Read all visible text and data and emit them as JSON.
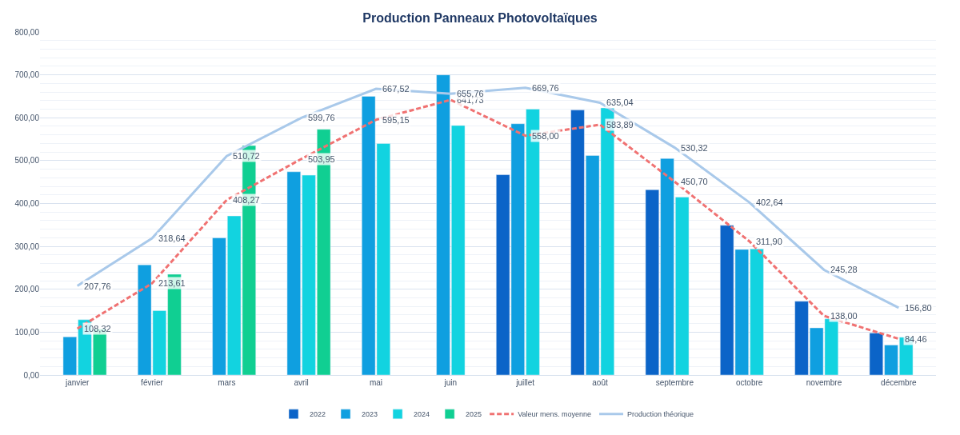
{
  "chart_data": {
    "type": "bar",
    "title": "Production Panneaux Photovoltaïques",
    "categories": [
      "janvier",
      "février",
      "mars",
      "avril",
      "mai",
      "juin",
      "juillet",
      "août",
      "septembre",
      "octobre",
      "novembre",
      "décembre"
    ],
    "series": [
      {
        "name": "2022",
        "color": "#0b64c8",
        "values": [
          null,
          null,
          null,
          null,
          null,
          null,
          467,
          618,
          432,
          349,
          172,
          98
        ]
      },
      {
        "name": "2023",
        "color": "#0f9fe0",
        "values": [
          89,
          257,
          320,
          474,
          650,
          700,
          586,
          512,
          505,
          293,
          110,
          70
        ]
      },
      {
        "name": "2024",
        "color": "#12d3e0",
        "values": [
          129,
          150,
          371,
          466,
          540,
          582,
          620,
          623,
          415,
          294,
          131,
          88
        ]
      },
      {
        "name": "2025",
        "color": "#10cf92",
        "values": [
          107,
          235,
          535,
          573,
          null,
          null,
          null,
          null,
          null,
          null,
          null,
          null
        ]
      },
      {
        "name": "Valeur mens. moyenne",
        "type": "line",
        "line_style": "dashed",
        "color": "#f07272",
        "values": [
          108.32,
          213.61,
          408.27,
          503.95,
          595.15,
          641.73,
          558.0,
          583.89,
          450.7,
          311.9,
          138.0,
          84.46
        ],
        "value_labels": [
          "108,32",
          "213,61",
          "408,27",
          "503,95",
          "595,15",
          "641,73",
          "558,00",
          "583,89",
          "450,70",
          "311,90",
          "138,00",
          "84,46"
        ]
      },
      {
        "name": "Production théorique",
        "type": "line",
        "line_style": "solid",
        "color": "#a9c9ea",
        "values": [
          207.76,
          318.64,
          510.72,
          599.76,
          667.52,
          655.76,
          669.76,
          635.04,
          530.32,
          402.64,
          245.28,
          156.8
        ],
        "value_labels": [
          "207,76",
          "318,64",
          "510,72",
          "599,76",
          "667,52",
          "655,76",
          "669,76",
          "635,04",
          "530,32",
          "402,64",
          "245,28",
          "156,80"
        ]
      }
    ],
    "ylim": [
      0,
      800
    ],
    "yticks": [
      {
        "value": 0,
        "label": "0,00"
      },
      {
        "value": 100,
        "label": "100,00"
      },
      {
        "value": 200,
        "label": "200,00"
      },
      {
        "value": 300,
        "label": "300,00"
      },
      {
        "value": 400,
        "label": "400,00"
      },
      {
        "value": 500,
        "label": "500,00"
      },
      {
        "value": 600,
        "label": "600,00"
      },
      {
        "value": 700,
        "label": "700,00"
      },
      {
        "value": 800,
        "label": "800,00"
      }
    ],
    "grid": "y",
    "legend": "bottom",
    "marker": "none"
  }
}
